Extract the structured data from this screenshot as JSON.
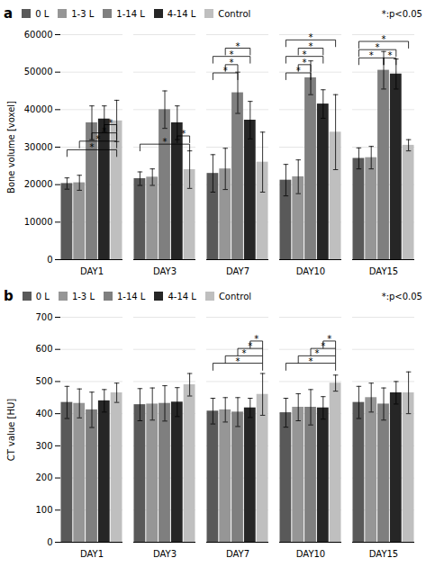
{
  "chart_data": [
    {
      "type": "bar",
      "title": "a",
      "categories": [
        "DAY1",
        "DAY3",
        "DAY7",
        "DAY10",
        "DAY15"
      ],
      "series": [
        {
          "name": "0 L",
          "color": "#595959",
          "values": [
            20300,
            21600,
            23000,
            21200,
            27000
          ],
          "errors": [
            1500,
            1800,
            5000,
            4200,
            2800
          ]
        },
        {
          "name": "1-3 L",
          "color": "#969696",
          "values": [
            20500,
            22000,
            24200,
            22100,
            27200
          ],
          "errors": [
            2000,
            2200,
            5500,
            4500,
            3000
          ]
        },
        {
          "name": "1-14 L",
          "color": "#7f7f7f",
          "values": [
            36500,
            40000,
            44500,
            48500,
            50500
          ],
          "errors": [
            4500,
            5000,
            5500,
            4500,
            5000
          ]
        },
        {
          "name": "4-14 L",
          "color": "#262626",
          "values": [
            37500,
            36500,
            37200,
            41500,
            49500
          ],
          "errors": [
            3500,
            4500,
            5000,
            3800,
            4000
          ]
        },
        {
          "name": "Control",
          "color": "#bfbfbf",
          "values": [
            37000,
            24000,
            26000,
            34000,
            30500
          ],
          "errors": [
            5500,
            5000,
            8000,
            10000,
            1500
          ]
        }
      ],
      "ylabel": "Bone volume [voxel]",
      "ylim": [
        0,
        60000
      ],
      "yticks": [
        0,
        10000,
        20000,
        30000,
        40000,
        50000,
        60000
      ],
      "grid": true,
      "legend": "upper left",
      "annotations": [
        {
          "text": "*:p<0.05"
        }
      ],
      "brackets": [
        {
          "category": "DAY1",
          "from": "0 L",
          "to": "Control",
          "y": 27500,
          "dy": 1800,
          "text": "*"
        },
        {
          "category": "DAY1",
          "from": "1-3 L",
          "to": "Control",
          "y": 29800,
          "dy": 1800,
          "text": "*"
        },
        {
          "category": "DAY1",
          "from": "1-14 L",
          "to": "Control",
          "y": 32000,
          "dy": 1800,
          "text": "*"
        },
        {
          "category": "DAY1",
          "from": "4-14 L",
          "to": "Control",
          "y": 34200,
          "dy": 1800,
          "text": "*"
        },
        {
          "category": "DAY3",
          "from": "0 L",
          "to": "Control",
          "y": 29000,
          "dy": 1800,
          "text": "*"
        },
        {
          "category": "DAY3",
          "from": "4-14 L",
          "to": "Control",
          "y": 31200,
          "dy": 1800,
          "text": "*"
        },
        {
          "category": "DAY7",
          "from": "0 L",
          "to": "1-14 L",
          "y": 48000,
          "dy": 1800,
          "text": "*"
        },
        {
          "category": "DAY7",
          "from": "1-3 L",
          "to": "1-14 L",
          "y": 50200,
          "dy": 1800,
          "text": "*"
        },
        {
          "category": "DAY7",
          "from": "0 L",
          "to": "4-14 L",
          "y": 52400,
          "dy": 1800,
          "text": "*"
        },
        {
          "category": "DAY7",
          "from": "1-3 L",
          "to": "4-14 L",
          "y": 54600,
          "dy": 1800,
          "text": "*"
        },
        {
          "category": "DAY10",
          "from": "0 L",
          "to": "1-14 L",
          "y": 48000,
          "dy": 1800,
          "text": "*"
        },
        {
          "category": "DAY10",
          "from": "1-3 L",
          "to": "1-14 L",
          "y": 50200,
          "dy": 1800,
          "text": "*"
        },
        {
          "category": "DAY10",
          "from": "0 L",
          "to": "4-14 L",
          "y": 52400,
          "dy": 1800,
          "text": "*"
        },
        {
          "category": "DAY10",
          "from": "1-3 L",
          "to": "4-14 L",
          "y": 54600,
          "dy": 1800,
          "text": "*"
        },
        {
          "category": "DAY10",
          "from": "0 L",
          "to": "Control",
          "y": 56800,
          "dy": 1800,
          "text": "*"
        },
        {
          "category": "DAY15",
          "from": "0 L",
          "to": "1-14 L",
          "y": 52000,
          "dy": 1800,
          "text": "*"
        },
        {
          "category": "DAY15",
          "from": "0 L",
          "to": "4-14 L",
          "y": 54200,
          "dy": 1800,
          "text": "*"
        },
        {
          "category": "DAY15",
          "from": "1-14 L",
          "to": "4-14 L",
          "y": 52000,
          "dy": 1800,
          "text": "*"
        },
        {
          "category": "DAY15",
          "from": "0 L",
          "to": "Control",
          "y": 56400,
          "dy": 1800,
          "text": "*"
        }
      ]
    },
    {
      "type": "bar",
      "title": "b",
      "categories": [
        "DAY1",
        "DAY3",
        "DAY7",
        "DAY10",
        "DAY15"
      ],
      "series": [
        {
          "name": "0 L",
          "color": "#595959",
          "values": [
            435,
            428,
            408,
            403,
            435
          ],
          "errors": [
            50,
            50,
            40,
            45,
            50
          ]
        },
        {
          "name": "1-3 L",
          "color": "#969696",
          "values": [
            432,
            430,
            412,
            420,
            450
          ],
          "errors": [
            45,
            50,
            38,
            42,
            45
          ]
        },
        {
          "name": "1-14 L",
          "color": "#7f7f7f",
          "values": [
            412,
            432,
            405,
            420,
            430
          ],
          "errors": [
            55,
            55,
            45,
            55,
            50
          ]
        },
        {
          "name": "4-14 L",
          "color": "#262626",
          "values": [
            440,
            436,
            418,
            418,
            465
          ],
          "errors": [
            35,
            45,
            30,
            35,
            35
          ]
        },
        {
          "name": "Control",
          "color": "#bfbfbf",
          "values": [
            465,
            490,
            460,
            495,
            465
          ],
          "errors": [
            30,
            35,
            65,
            25,
            65
          ]
        }
      ],
      "ylabel": "CT value [HU]",
      "ylim": [
        0,
        700
      ],
      "yticks": [
        0,
        100,
        200,
        300,
        400,
        500,
        600,
        700
      ],
      "grid": true,
      "legend": "upper left",
      "annotations": [
        {
          "text": "*:p<0.05"
        }
      ],
      "brackets": [
        {
          "category": "DAY7",
          "from": "0 L",
          "to": "Control",
          "y": 535,
          "dy": 22,
          "text": "*"
        },
        {
          "category": "DAY7",
          "from": "1-3 L",
          "to": "Control",
          "y": 558,
          "dy": 22,
          "text": "*"
        },
        {
          "category": "DAY7",
          "from": "1-14 L",
          "to": "Control",
          "y": 581,
          "dy": 22,
          "text": "*"
        },
        {
          "category": "DAY7",
          "from": "4-14 L",
          "to": "Control",
          "y": 604,
          "dy": 22,
          "text": "*"
        },
        {
          "category": "DAY10",
          "from": "0 L",
          "to": "Control",
          "y": 535,
          "dy": 22,
          "text": "*"
        },
        {
          "category": "DAY10",
          "from": "1-3 L",
          "to": "Control",
          "y": 558,
          "dy": 22,
          "text": "*"
        },
        {
          "category": "DAY10",
          "from": "1-14 L",
          "to": "Control",
          "y": 581,
          "dy": 22,
          "text": "*"
        },
        {
          "category": "DAY10",
          "from": "4-14 L",
          "to": "Control",
          "y": 604,
          "dy": 22,
          "text": "*"
        }
      ]
    }
  ]
}
